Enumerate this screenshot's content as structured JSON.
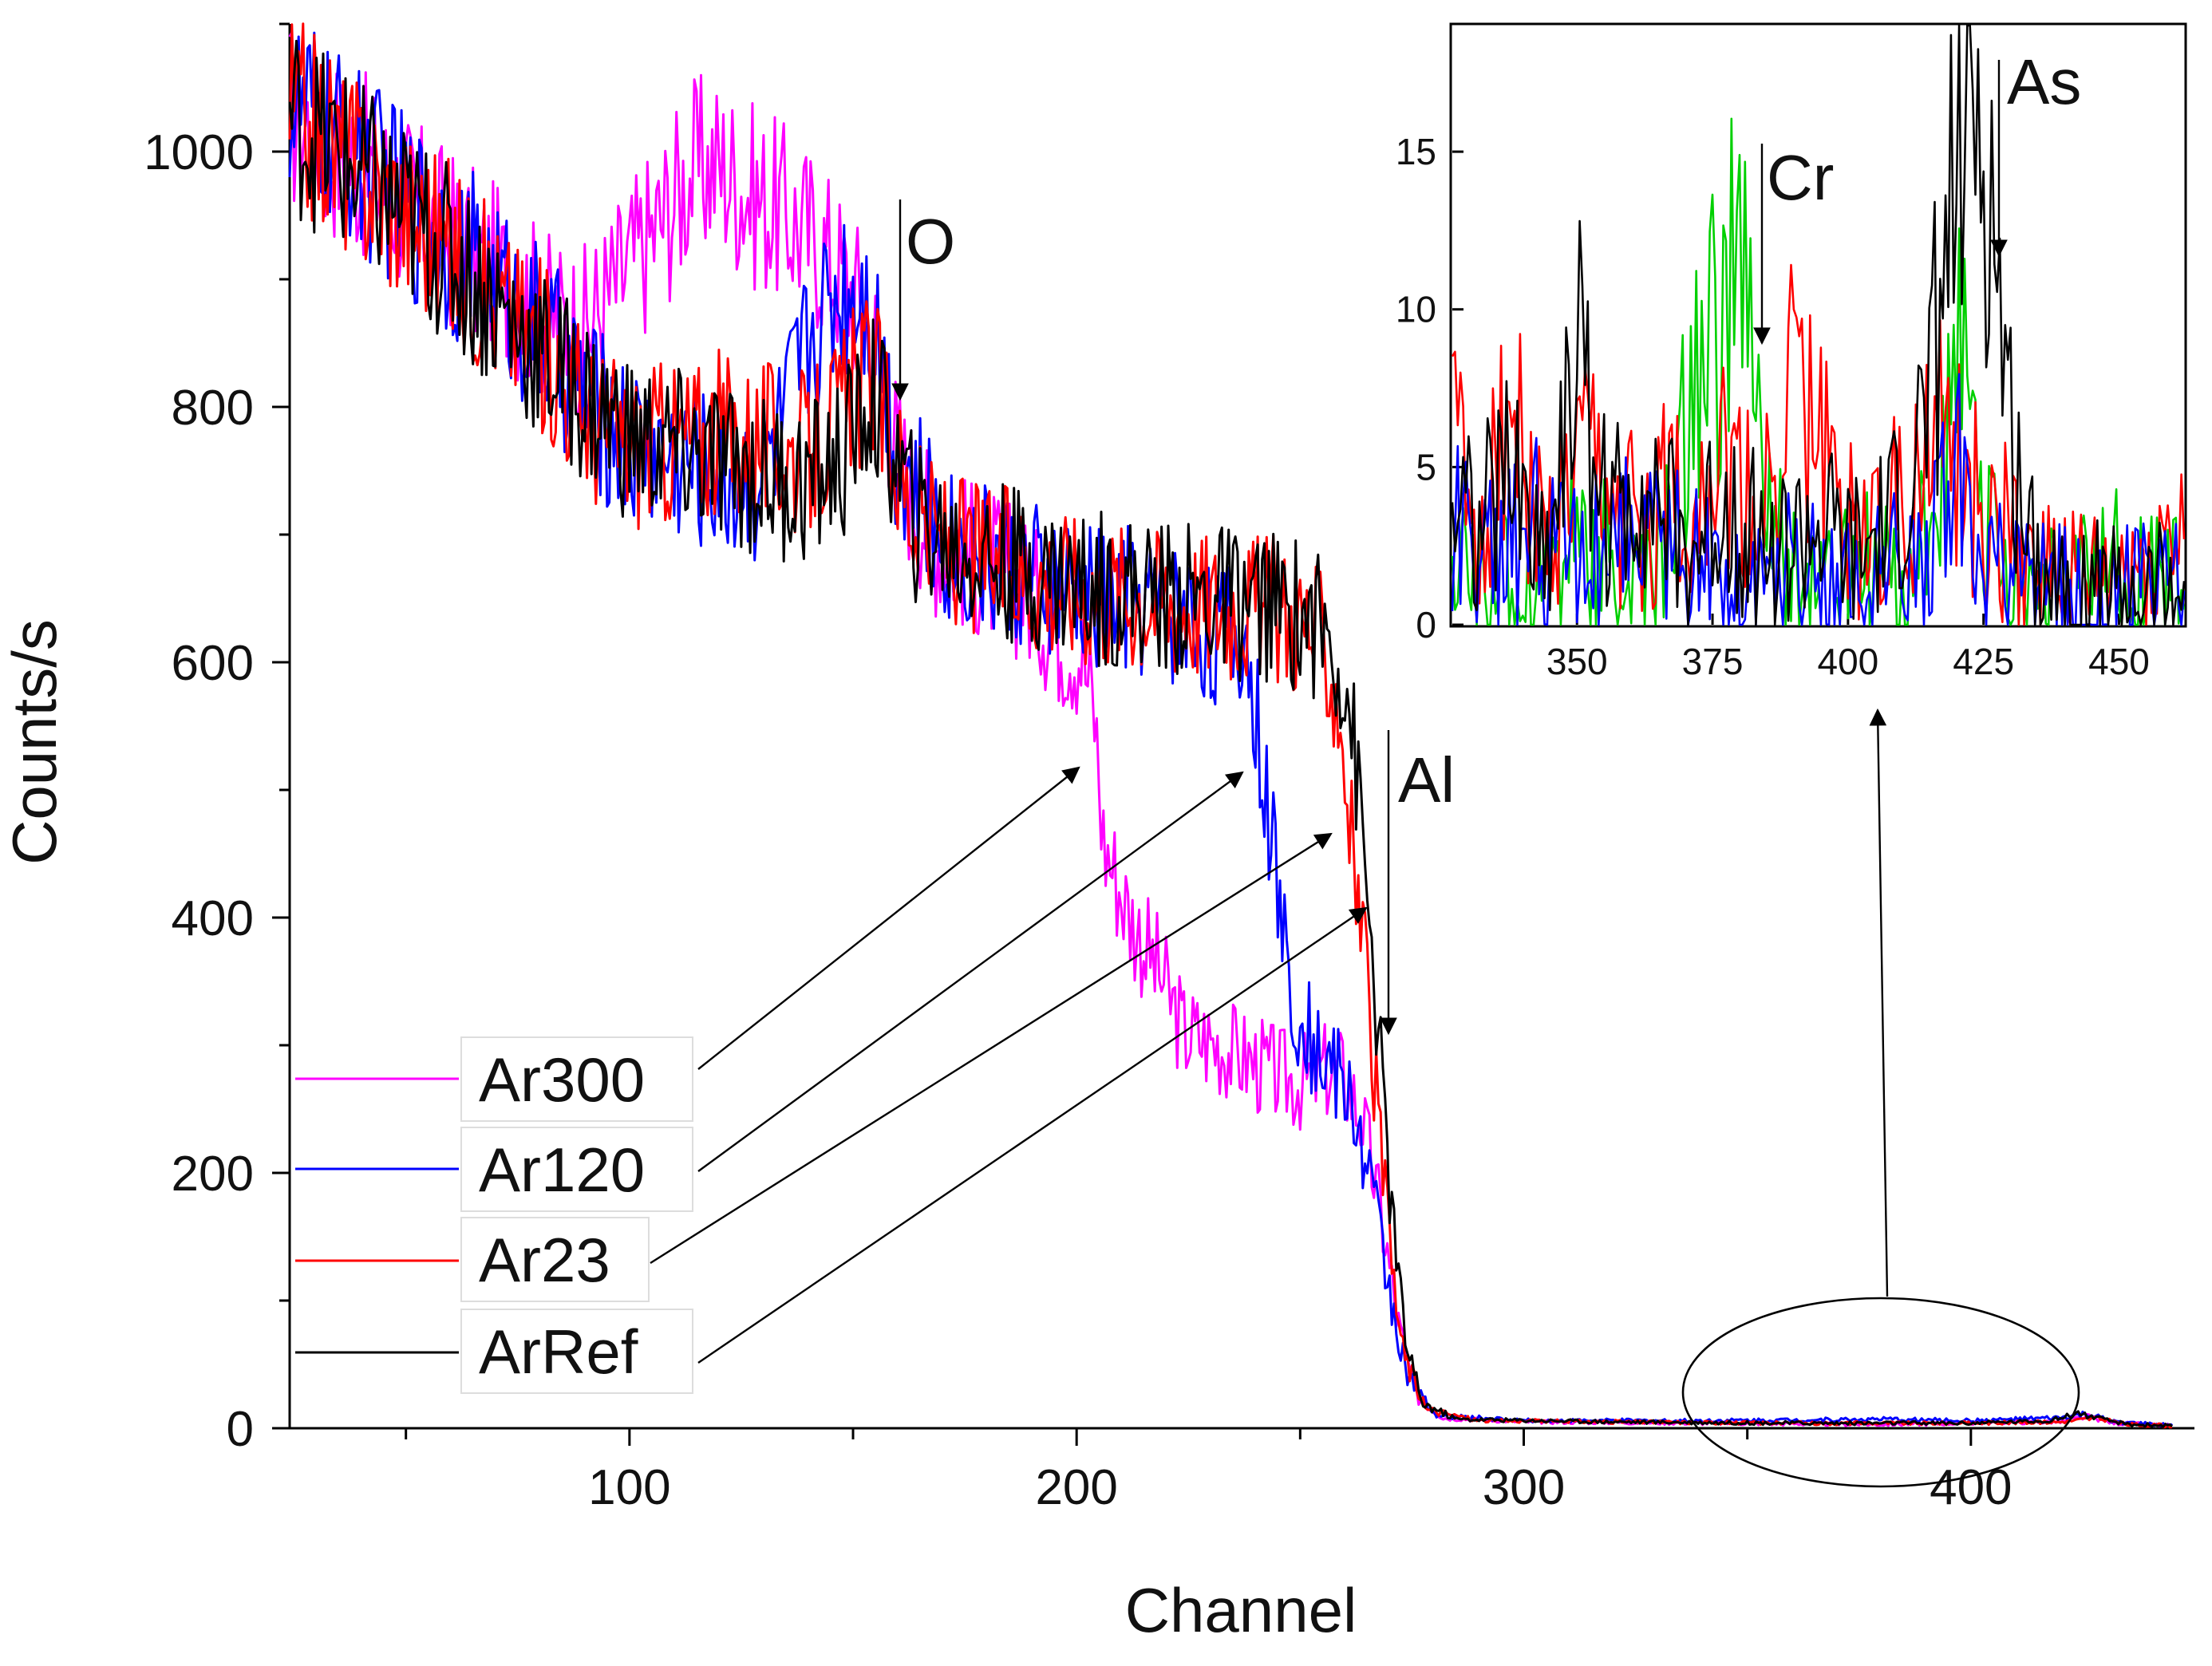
{
  "chart_data": {
    "type": "line",
    "xlabel": "Channel",
    "ylabel": "Counts/s",
    "xlim": [
      24,
      450
    ],
    "ylim": [
      0,
      1100
    ],
    "xticks": [
      "100",
      "200",
      "300",
      "400"
    ],
    "xtick_values": [
      100,
      200,
      300,
      400
    ],
    "yticks": [
      "0",
      "200",
      "400",
      "600",
      "800",
      "1000"
    ],
    "ytick_values": [
      0,
      200,
      400,
      600,
      800,
      1000
    ],
    "series": [
      {
        "name": "Ar300",
        "color": "#ff00ff",
        "points": [
          [
            24,
            1030
          ],
          [
            40,
            990
          ],
          [
            55,
            945
          ],
          [
            70,
            905
          ],
          [
            82,
            870
          ],
          [
            90,
            860
          ],
          [
            98,
            900
          ],
          [
            106,
            940
          ],
          [
            114,
            985
          ],
          [
            120,
            990
          ],
          [
            128,
            965
          ],
          [
            135,
            950
          ],
          [
            142,
            930
          ],
          [
            150,
            890
          ],
          [
            156,
            840
          ],
          [
            160,
            760
          ],
          [
            168,
            700
          ],
          [
            178,
            680
          ],
          [
            188,
            660
          ],
          [
            196,
            625
          ],
          [
            201,
            610
          ],
          [
            204,
            560
          ],
          [
            206,
            460
          ],
          [
            212,
            400
          ],
          [
            218,
            360
          ],
          [
            224,
            310
          ],
          [
            232,
            300
          ],
          [
            240,
            285
          ],
          [
            246,
            275
          ],
          [
            250,
            270
          ],
          [
            256,
            280
          ],
          [
            260,
            275
          ],
          [
            264,
            240
          ],
          [
            268,
            170
          ],
          [
            272,
            80
          ],
          [
            276,
            25
          ],
          [
            282,
            8
          ],
          [
            300,
            5
          ],
          [
            340,
            4
          ],
          [
            380,
            3
          ],
          [
            420,
            5
          ],
          [
            426,
            9
          ],
          [
            432,
            4
          ],
          [
            445,
            2
          ]
        ]
      },
      {
        "name": "Ar120",
        "color": "#0000ff",
        "points": [
          [
            24,
            1040
          ],
          [
            40,
            990
          ],
          [
            55,
            945
          ],
          [
            70,
            895
          ],
          [
            82,
            850
          ],
          [
            92,
            800
          ],
          [
            100,
            770
          ],
          [
            110,
            760
          ],
          [
            120,
            745
          ],
          [
            128,
            740
          ],
          [
            134,
            780
          ],
          [
            140,
            850
          ],
          [
            146,
            890
          ],
          [
            152,
            900
          ],
          [
            156,
            850
          ],
          [
            160,
            760
          ],
          [
            170,
            695
          ],
          [
            180,
            680
          ],
          [
            192,
            660
          ],
          [
            202,
            650
          ],
          [
            212,
            650
          ],
          [
            222,
            640
          ],
          [
            232,
            620
          ],
          [
            238,
            615
          ],
          [
            240,
            560
          ],
          [
            243,
            480
          ],
          [
            246,
            390
          ],
          [
            249,
            330
          ],
          [
            253,
            300
          ],
          [
            258,
            280
          ],
          [
            262,
            250
          ],
          [
            266,
            190
          ],
          [
            270,
            110
          ],
          [
            274,
            40
          ],
          [
            280,
            10
          ],
          [
            300,
            6
          ],
          [
            340,
            6
          ],
          [
            380,
            7
          ],
          [
            400,
            6
          ],
          [
            420,
            8
          ],
          [
            426,
            11
          ],
          [
            432,
            5
          ],
          [
            445,
            2
          ]
        ]
      },
      {
        "name": "Ar23",
        "color": "#ff0000",
        "points": [
          [
            24,
            1035
          ],
          [
            40,
            985
          ],
          [
            55,
            940
          ],
          [
            70,
            885
          ],
          [
            82,
            840
          ],
          [
            92,
            790
          ],
          [
            100,
            770
          ],
          [
            110,
            775
          ],
          [
            120,
            780
          ],
          [
            130,
            775
          ],
          [
            140,
            760
          ],
          [
            148,
            800
          ],
          [
            154,
            830
          ],
          [
            158,
            780
          ],
          [
            164,
            710
          ],
          [
            172,
            690
          ],
          [
            182,
            680
          ],
          [
            192,
            668
          ],
          [
            202,
            660
          ],
          [
            212,
            655
          ],
          [
            222,
            650
          ],
          [
            232,
            648
          ],
          [
            240,
            645
          ],
          [
            246,
            640
          ],
          [
            252,
            630
          ],
          [
            256,
            610
          ],
          [
            259,
            560
          ],
          [
            261,
            480
          ],
          [
            264,
            380
          ],
          [
            267,
            260
          ],
          [
            270,
            140
          ],
          [
            273,
            60
          ],
          [
            278,
            15
          ],
          [
            290,
            6
          ],
          [
            320,
            5
          ],
          [
            360,
            4
          ],
          [
            400,
            4
          ],
          [
            420,
            5
          ],
          [
            428,
            8
          ],
          [
            435,
            3
          ],
          [
            445,
            2
          ]
        ]
      },
      {
        "name": "ArRef",
        "color": "#000000",
        "points": [
          [
            24,
            1030
          ],
          [
            40,
            980
          ],
          [
            55,
            935
          ],
          [
            70,
            880
          ],
          [
            82,
            835
          ],
          [
            92,
            800
          ],
          [
            100,
            775
          ],
          [
            110,
            765
          ],
          [
            120,
            755
          ],
          [
            130,
            745
          ],
          [
            140,
            740
          ],
          [
            148,
            760
          ],
          [
            154,
            810
          ],
          [
            158,
            775
          ],
          [
            164,
            710
          ],
          [
            172,
            690
          ],
          [
            182,
            680
          ],
          [
            192,
            670
          ],
          [
            202,
            660
          ],
          [
            212,
            655
          ],
          [
            222,
            650
          ],
          [
            232,
            648
          ],
          [
            240,
            645
          ],
          [
            248,
            640
          ],
          [
            254,
            630
          ],
          [
            258,
            610
          ],
          [
            261,
            570
          ],
          [
            264,
            460
          ],
          [
            267,
            330
          ],
          [
            270,
            190
          ],
          [
            273,
            80
          ],
          [
            277,
            20
          ],
          [
            285,
            7
          ],
          [
            320,
            5
          ],
          [
            360,
            4
          ],
          [
            400,
            4
          ],
          [
            418,
            6
          ],
          [
            424,
            12
          ],
          [
            428,
            8
          ],
          [
            435,
            3
          ],
          [
            445,
            2
          ]
        ]
      }
    ],
    "annotations": [
      {
        "label": "O",
        "channel": 160,
        "counts": 810
      },
      {
        "label": "Al",
        "channel": 267,
        "counts": 315
      }
    ],
    "inset": {
      "type": "line",
      "xlim": [
        327,
        462
      ],
      "ylim": [
        0,
        19
      ],
      "xticks": [
        "350",
        "375",
        "400",
        "425",
        "450"
      ],
      "xtick_values": [
        350,
        375,
        400,
        425,
        450
      ],
      "yticks": [
        "0",
        "5",
        "10",
        "15"
      ],
      "ytick_values": [
        0,
        5,
        10,
        15
      ],
      "annotations": [
        {
          "label": "Cr",
          "channel": 380,
          "counts": 9.5
        },
        {
          "label": "As",
          "channel": 425,
          "counts": 13
        }
      ],
      "series": [
        {
          "name": "green",
          "color": "#00d000",
          "points": [
            [
              327,
              2
            ],
            [
              340,
              1
            ],
            [
              350,
              3
            ],
            [
              360,
              1
            ],
            [
              366,
              2
            ],
            [
              370,
              6
            ],
            [
              374,
              9
            ],
            [
              378,
              10
            ],
            [
              380,
              12
            ],
            [
              382,
              8
            ],
            [
              386,
              3
            ],
            [
              392,
              1
            ],
            [
              400,
              2
            ],
            [
              410,
              1
            ],
            [
              416,
              3
            ],
            [
              420,
              7
            ],
            [
              421,
              9
            ],
            [
              423,
              5
            ],
            [
              428,
              2
            ],
            [
              440,
              1
            ],
            [
              450,
              2
            ],
            [
              462,
              1
            ]
          ]
        },
        {
          "name": "red",
          "color": "#ff0000",
          "points": [
            [
              327,
              6
            ],
            [
              332,
              3
            ],
            [
              338,
              7
            ],
            [
              344,
              2
            ],
            [
              352,
              5
            ],
            [
              358,
              3
            ],
            [
              366,
              4
            ],
            [
              376,
              5
            ],
            [
              384,
              3
            ],
            [
              390,
              8
            ],
            [
              396,
              5
            ],
            [
              402,
              3
            ],
            [
              410,
              4
            ],
            [
              418,
              6
            ],
            [
              422,
              4
            ],
            [
              428,
              3
            ],
            [
              436,
              2
            ],
            [
              446,
              1
            ],
            [
              455,
              2
            ],
            [
              462,
              3
            ]
          ]
        },
        {
          "name": "blue",
          "color": "#0000ff",
          "points": [
            [
              327,
              3
            ],
            [
              335,
              2
            ],
            [
              342,
              3
            ],
            [
              350,
              2
            ],
            [
              360,
              3
            ],
            [
              370,
              2
            ],
            [
              380,
              1
            ],
            [
              390,
              2
            ],
            [
              400,
              1
            ],
            [
              410,
              2
            ],
            [
              416,
              3
            ],
            [
              420,
              5
            ],
            [
              422,
              3
            ],
            [
              426,
              2
            ],
            [
              432,
              1
            ],
            [
              445,
              1
            ],
            [
              462,
              1
            ]
          ]
        },
        {
          "name": "black",
          "color": "#000000",
          "points": [
            [
              327,
              5
            ],
            [
              332,
              3
            ],
            [
              338,
              5
            ],
            [
              344,
              2
            ],
            [
              350,
              9
            ],
            [
              356,
              3
            ],
            [
              362,
              5
            ],
            [
              370,
              2
            ],
            [
              378,
              4
            ],
            [
              386,
              2
            ],
            [
              394,
              3
            ],
            [
              402,
              2
            ],
            [
              408,
              3
            ],
            [
              412,
              5
            ],
            [
              415,
              7
            ],
            [
              417,
              10
            ],
            [
              419,
              13
            ],
            [
              421,
              15
            ],
            [
              422,
              17
            ],
            [
              424,
              16
            ],
            [
              426,
              14
            ],
            [
              428,
              10
            ],
            [
              430,
              6
            ],
            [
              433,
              3
            ],
            [
              440,
              1
            ],
            [
              450,
              1
            ],
            [
              462,
              1
            ]
          ]
        }
      ]
    }
  }
}
